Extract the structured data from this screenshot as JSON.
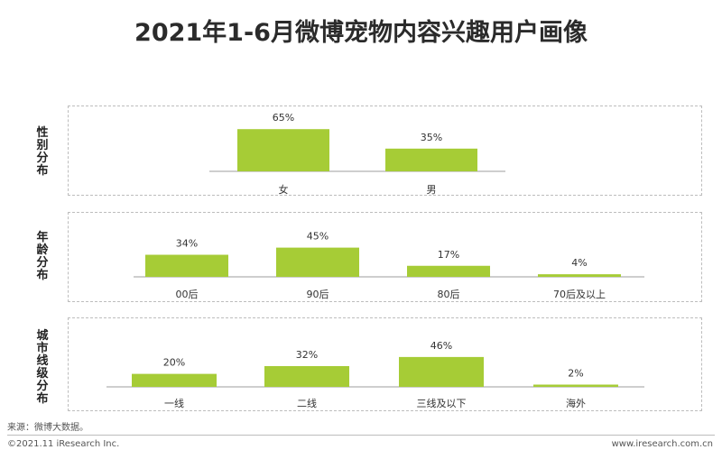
{
  "title": "2021年1-6月微博宠物内容兴趣用户画像",
  "source": "来源：微博大数据。",
  "footer_left": "©2021.11 iResearch Inc.",
  "footer_right": "www.iresearch.com.cn",
  "colors": {
    "bar": "#a6cc36",
    "axis": "#9e9e9e",
    "text": "#333333",
    "border": "#bdbdbd"
  },
  "chart_data": [
    {
      "type": "bar",
      "title": "性别分布",
      "categories": [
        "女",
        "男"
      ],
      "values": [
        65,
        35
      ],
      "labels": [
        "65%",
        "35%"
      ],
      "unit": "%",
      "ylim": [
        0,
        65
      ]
    },
    {
      "type": "bar",
      "title": "年龄分布",
      "categories": [
        "00后",
        "90后",
        "80后",
        "70后及以上"
      ],
      "values": [
        34,
        45,
        17,
        4
      ],
      "labels": [
        "34%",
        "45%",
        "17%",
        "4%"
      ],
      "unit": "%",
      "ylim": [
        0,
        65
      ]
    },
    {
      "type": "bar",
      "title": "城市线级分布",
      "categories": [
        "一线",
        "二线",
        "三线及以下",
        "海外"
      ],
      "values": [
        20,
        32,
        46,
        2
      ],
      "labels": [
        "20%",
        "32%",
        "46%",
        "2%"
      ],
      "unit": "%",
      "ylim": [
        0,
        65
      ]
    }
  ]
}
